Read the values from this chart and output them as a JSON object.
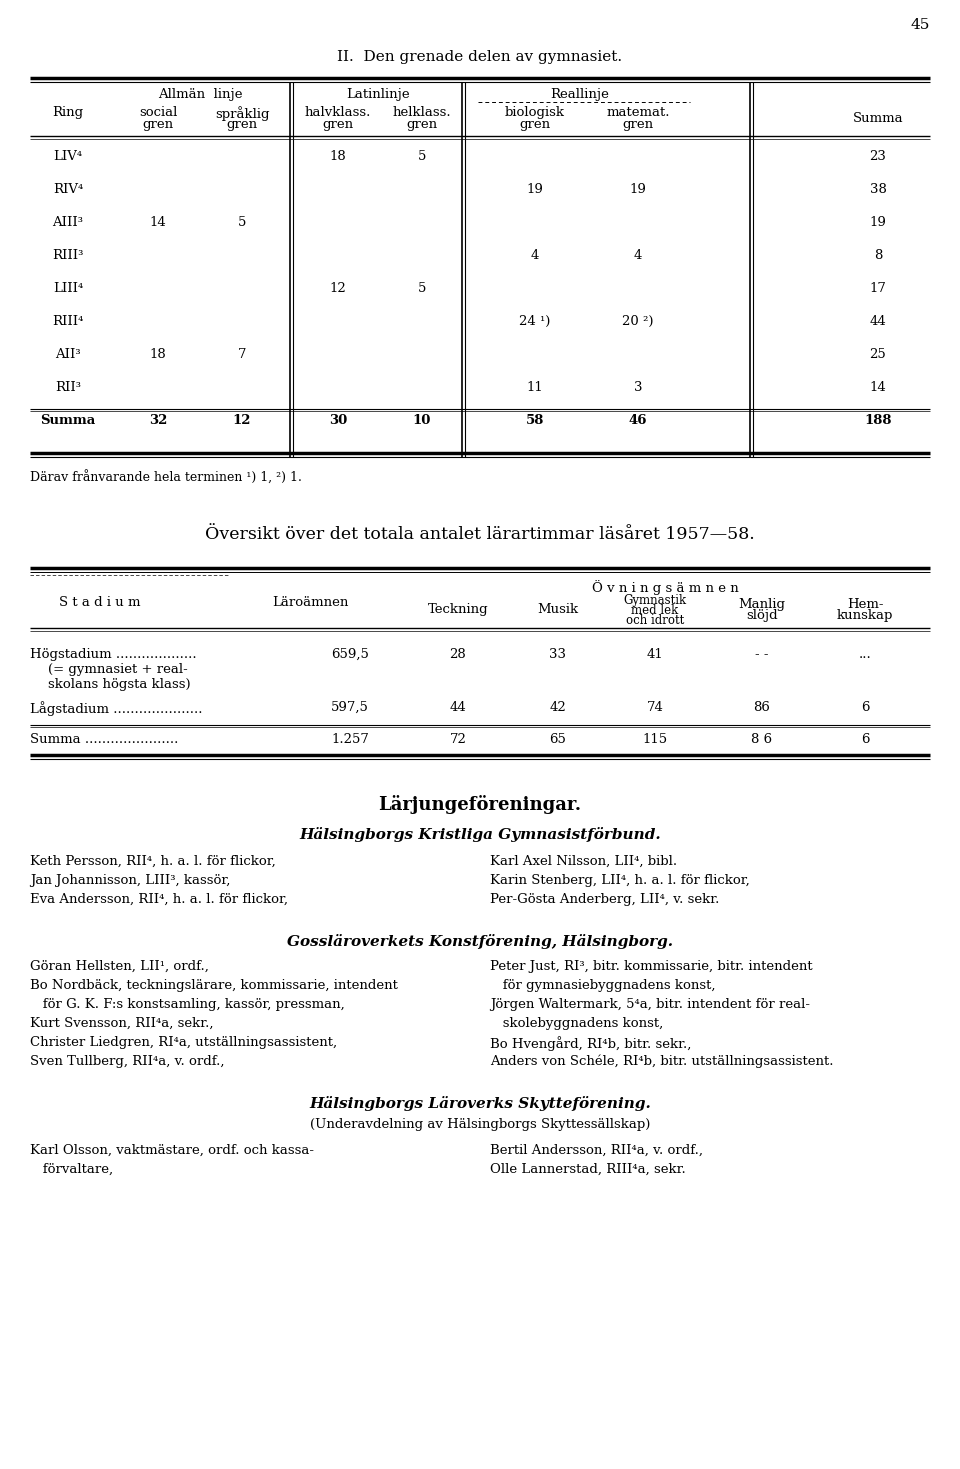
{
  "page_number": "45",
  "title1": "II.  Den grenade delen av gymnasiet.",
  "table1_data": [
    [
      "LIV⁴",
      "",
      "",
      "18",
      "5",
      "",
      "",
      "23"
    ],
    [
      "RIV⁴",
      "",
      "",
      "",
      "",
      "19",
      "19",
      "38"
    ],
    [
      "AIII³",
      "14",
      "5",
      "",
      "",
      "",
      "",
      "19"
    ],
    [
      "RIII³",
      "",
      "",
      "",
      "",
      "4",
      "4",
      "8"
    ],
    [
      "LIII⁴",
      "",
      "",
      "12",
      "5",
      "",
      "",
      "17"
    ],
    [
      "RIII⁴",
      "",
      "",
      "",
      "",
      "24 ¹)",
      "20 ²)",
      "44"
    ],
    [
      "AII³",
      "18",
      "7",
      "",
      "",
      "",
      "",
      "25"
    ],
    [
      "RII³",
      "",
      "",
      "",
      "",
      "11",
      "3",
      "14"
    ],
    [
      "Summa",
      "32",
      "12",
      "30",
      "10",
      "58",
      "46",
      "188"
    ]
  ],
  "footnote1": "Därav frånvarande hela terminen ¹) 1, ²) 1.",
  "title2": "Översikt över det totala antalet lärartimmar läsåret 1957—58.",
  "section3_title": "Lärjungeföreningar.",
  "section3_sub1": "Hälsingborgs Kristliga Gymnasistförbund.",
  "section3_left": [
    "Keth Persson, RII⁴, h. a. l. för flickor,",
    "Jan Johannisson, LIII³, kassör,",
    "Eva Andersson, RII⁴, h. a. l. för flickor,"
  ],
  "section3_right": [
    "Karl Axel Nilsson, LII⁴, bibl.",
    "Karin Stenberg, LII⁴, h. a. l. för flickor,",
    "Per-Gösta Anderberg, LII⁴, v. sekr."
  ],
  "section4_title": "Gossläroverkets Konstförening, Hälsingborg.",
  "section4_left": [
    "Göran Hellsten, LII¹, ordf.,",
    "Bo Nordbäck, teckningslärare, kommissarie, intendent",
    "   för G. K. F:s konstsamling, kassör, pressman,",
    "Kurt Svensson, RII⁴a, sekr.,",
    "Christer Liedgren, RI⁴a, utställningsassistent,",
    "Sven Tullberg, RII⁴a, v. ordf.,"
  ],
  "section4_right": [
    "Peter Just, RI³, bitr. kommissarie, bitr. intendent",
    "   för gymnasiebyggnadens konst,",
    "Jörgen Waltermark, 5⁴a, bitr. intendent för real-",
    "   skolebyggnadens konst,",
    "Bo Hvengård, RI⁴b, bitr. sekr.,",
    "Anders von Schéle, RI⁴b, bitr. utställningsassistent."
  ],
  "section5_title": "Hälsingborgs Läroverks Skytteförening.",
  "section5_sub": "(Underavdelning av Hälsingborgs Skyttessällskap)",
  "section5_left": [
    "Karl Olsson, vaktmästare, ordf. och kassa-",
    "   förvaltare,"
  ],
  "section5_right": [
    "Bertil Andersson, RII⁴a, v. ordf.,",
    "Olle Lannerstad, RIII⁴a, sekr."
  ]
}
